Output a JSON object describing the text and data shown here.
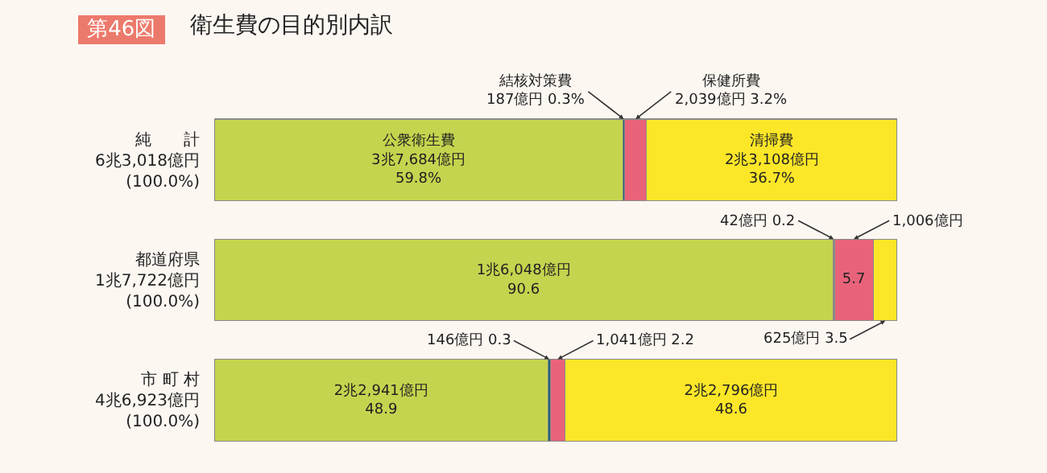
{
  "chart_data": {
    "type": "bar",
    "orientation": "horizontal",
    "stacked": true,
    "title": "衛生費の目的別内訳",
    "categories": [
      "純　　計\n6兆3,018億円\n(100.0%)",
      "都道府県\n1兆7,722億円\n(100.0%)",
      "市 町 村\n4兆6,923億円\n(100.0%)"
    ],
    "xlim": [
      0,
      100
    ],
    "tick_labels": "y",
    "series": [
      {
        "color": "#c5d44e",
        "values": [
          59.8,
          90.6,
          48.9
        ],
        "value_labels": [
          "公衆衛生費\n3兆7,684億円\n59.8%",
          "1兆6,048億円\n90.6",
          "2兆2,941億円\n48.9"
        ]
      },
      {
        "color": "#1f5f73",
        "values": [
          0.3,
          0.2,
          0.3
        ],
        "value_labels": [
          null,
          null,
          null
        ]
      },
      {
        "color": "#e8637a",
        "values": [
          3.2,
          5.7,
          2.2
        ],
        "value_labels": [
          null,
          "5.7",
          null
        ]
      },
      {
        "color": "#fce628",
        "values": [
          36.7,
          3.5,
          48.6
        ],
        "value_labels": [
          "清掃費\n2兆3,108億円\n36.7%",
          null,
          "2兆2,796億円\n48.6"
        ]
      }
    ],
    "annotations": [
      "第46図",
      "結核対策費\n187億円 0.3%",
      "保健所費\n2,039億円 3.2%",
      "42億円 0.2",
      "1,006億円",
      "625億円 3.5",
      "146億円 0.3",
      "1,041億円 2.2"
    ]
  }
}
